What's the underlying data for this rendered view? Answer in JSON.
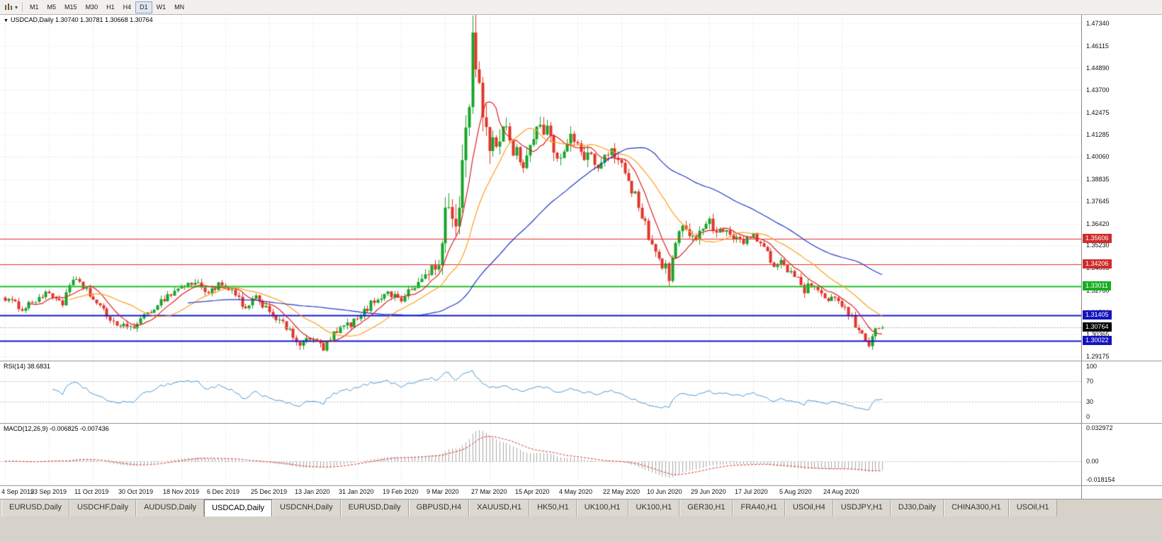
{
  "toolbar": {
    "icons": [
      {
        "name": "chart-type-icon"
      },
      {
        "name": "dropdown-caret-icon"
      }
    ],
    "timeframes": [
      {
        "label": "M1",
        "active": false
      },
      {
        "label": "M5",
        "active": false
      },
      {
        "label": "M15",
        "active": false
      },
      {
        "label": "M30",
        "active": false
      },
      {
        "label": "H1",
        "active": false
      },
      {
        "label": "H4",
        "active": false
      },
      {
        "label": "D1",
        "active": true
      },
      {
        "label": "W1",
        "active": false
      },
      {
        "label": "MN",
        "active": false
      }
    ]
  },
  "chart": {
    "title_arrow": "▼",
    "symbol": "USDCAD,Daily",
    "ohlc": "1.30740 1.30781 1.30668 1.30764"
  },
  "rsi_panel": {
    "title": "RSI(14) 38.6831",
    "line_color": "#4f9bd5",
    "ticks": [
      {
        "text": "100",
        "value": 100
      },
      {
        "text": "70",
        "value": 70
      },
      {
        "text": "30",
        "value": 30
      },
      {
        "text": "0",
        "value": 0
      }
    ],
    "dotted_levels": [
      70,
      30
    ]
  },
  "macd_panel": {
    "title": "MACD(12,26,9) -0.006825 -0.007436",
    "hist_color": "#a8a8a8",
    "signal_color": "#e03030",
    "range": [
      -0.018154,
      0.032972
    ],
    "ticks": [
      {
        "text": "0.032972",
        "value": 0.032972
      },
      {
        "text": "0.00",
        "value": 0
      },
      {
        "text": "-0.018154",
        "value": -0.018154
      }
    ]
  },
  "price_axis": {
    "top": 1.4734,
    "bottom": 1.29175,
    "labels": [
      "1.47340",
      "1.46115",
      "1.44890",
      "1.43700",
      "1.42475",
      "1.41285",
      "1.40060",
      "1.38835",
      "1.37645",
      "1.36420",
      "1.35230",
      "1.34005",
      "1.32780",
      "1.31590",
      "1.30365",
      "1.29175"
    ]
  },
  "levels": [
    {
      "text": "1.35606",
      "price": 1.35606,
      "line": "#e62e2e",
      "badge": "#cf2c2c",
      "width": 1
    },
    {
      "text": "1.34206",
      "price": 1.34206,
      "line": "#e62e2e",
      "badge": "#cf2c2c",
      "width": 1
    },
    {
      "text": "1.33011",
      "price": 1.33011,
      "line": "#1fbf2a",
      "badge": "#17ad21",
      "width": 2
    },
    {
      "text": "1.31405",
      "price": 1.31405,
      "line": "#1616cf",
      "badge": "#1414bd",
      "width": 2
    },
    {
      "text": "1.30022",
      "price": 1.30022,
      "line": "#1616cf",
      "badge": "#1414bd",
      "width": 2
    }
  ],
  "current_price": {
    "text": "1.30764",
    "value": 1.30764,
    "badge": "#000000"
  },
  "dates": [
    "4 Sep 2019",
    "23 Sep 2019",
    "11 Oct 2019",
    "30 Oct 2019",
    "18 Nov 2019",
    "6 Dec 2019",
    "25 Dec 2019",
    "13 Jan 2020",
    "31 Jan 2020",
    "19 Feb 2020",
    "9 Mar 2020",
    "27 Mar 2020",
    "15 Apr 2020",
    "4 May 2020",
    "22 May 2020",
    "10 Jun 2020",
    "29 Jun 2020",
    "17 Jul 2020",
    "5 Aug 2020",
    "24 Aug 2020"
  ],
  "tabs": {
    "active_index": 3,
    "items": [
      "EURUSD,Daily",
      "USDCHF,Daily",
      "AUDUSD,Daily",
      "USDCAD,Daily",
      "USDCNH,Daily",
      "EURUSD,Daily",
      "GBPUSD,H4",
      "XAUUSD,H1",
      "HK50,H1",
      "UK100,H1",
      "UK100,H1",
      "GER30,H1",
      "FRA40,H1",
      "USOil,H4",
      "USDJPY,H1",
      "DJ30,Daily",
      "CHINA300,H1",
      "USOil,H1"
    ],
    "note": "USDCAD,Daily is the selected chart tab"
  },
  "chart_data": {
    "type": "candlestick",
    "symbol": "USDCAD",
    "timeframe": "Daily",
    "count": 260,
    "bars_per_tick": 13,
    "seed": 1234,
    "up_color": "#18a428",
    "down_color": "#e03528",
    "last_close": 1.30764,
    "session_high": 1.4668,
    "price_anchors": [
      [
        0,
        1.3235
      ],
      [
        5,
        1.318
      ],
      [
        10,
        1.324
      ],
      [
        13,
        1.326
      ],
      [
        17,
        1.321
      ],
      [
        20,
        1.3335
      ],
      [
        24,
        1.3285
      ],
      [
        26,
        1.3225
      ],
      [
        30,
        1.314
      ],
      [
        34,
        1.3075
      ],
      [
        39,
        1.309
      ],
      [
        43,
        1.317
      ],
      [
        47,
        1.3235
      ],
      [
        52,
        1.33
      ],
      [
        56,
        1.332
      ],
      [
        60,
        1.327
      ],
      [
        63,
        1.3305
      ],
      [
        66,
        1.328
      ],
      [
        69,
        1.323
      ],
      [
        71,
        1.317
      ],
      [
        74,
        1.3235
      ],
      [
        78,
        1.317
      ],
      [
        81,
        1.311
      ],
      [
        84,
        1.305
      ],
      [
        87,
        1.2985
      ],
      [
        91,
        1.3015
      ],
      [
        94,
        1.296
      ],
      [
        97,
        1.3035
      ],
      [
        100,
        1.308
      ],
      [
        104,
        1.3115
      ],
      [
        108,
        1.3205
      ],
      [
        112,
        1.3265
      ],
      [
        117,
        1.3235
      ],
      [
        121,
        1.3295
      ],
      [
        125,
        1.3385
      ],
      [
        128,
        1.3405
      ],
      [
        130,
        1.366
      ],
      [
        131,
        1.3755
      ],
      [
        133,
        1.3625
      ],
      [
        135,
        1.395
      ],
      [
        137,
        1.435
      ],
      [
        138,
        1.462
      ],
      [
        140,
        1.4455
      ],
      [
        141,
        1.4255
      ],
      [
        143,
        1.3995
      ],
      [
        145,
        1.409
      ],
      [
        147,
        1.4195
      ],
      [
        149,
        1.4105
      ],
      [
        151,
        1.4035
      ],
      [
        153,
        1.3975
      ],
      [
        156,
        1.409
      ],
      [
        158,
        1.42
      ],
      [
        160,
        1.413
      ],
      [
        162,
        1.406
      ],
      [
        164,
        1.401
      ],
      [
        166,
        1.412
      ],
      [
        169,
        1.407
      ],
      [
        171,
        1.398
      ],
      [
        173,
        1.404
      ],
      [
        175,
        1.393
      ],
      [
        177,
        1.399
      ],
      [
        179,
        1.403
      ],
      [
        182,
        1.399
      ],
      [
        184,
        1.388
      ],
      [
        186,
        1.379
      ],
      [
        188,
        1.368
      ],
      [
        190,
        1.358
      ],
      [
        192,
        1.348
      ],
      [
        194,
        1.339
      ],
      [
        195,
        1.342
      ],
      [
        196,
        1.334
      ],
      [
        198,
        1.356
      ],
      [
        200,
        1.362
      ],
      [
        202,
        1.355
      ],
      [
        204,
        1.358
      ],
      [
        206,
        1.364
      ],
      [
        208,
        1.365
      ],
      [
        210,
        1.36
      ],
      [
        212,
        1.362
      ],
      [
        214,
        1.356
      ],
      [
        216,
        1.359
      ],
      [
        218,
        1.354
      ],
      [
        221,
        1.358
      ],
      [
        223,
        1.353
      ],
      [
        225,
        1.347
      ],
      [
        227,
        1.341
      ],
      [
        229,
        1.344
      ],
      [
        231,
        1.339
      ],
      [
        234,
        1.333
      ],
      [
        236,
        1.328
      ],
      [
        238,
        1.331
      ],
      [
        240,
        1.326
      ],
      [
        242,
        1.322
      ],
      [
        244,
        1.325
      ],
      [
        247,
        1.319
      ],
      [
        249,
        1.315
      ],
      [
        251,
        1.309
      ],
      [
        253,
        1.303
      ],
      [
        255,
        1.299
      ],
      [
        256,
        1.304
      ],
      [
        258,
        1.3076
      ],
      [
        259,
        1.30764
      ]
    ],
    "volatility_anchors": [
      [
        0,
        0.0028
      ],
      [
        80,
        0.0032
      ],
      [
        120,
        0.0035
      ],
      [
        128,
        0.006
      ],
      [
        130,
        0.012
      ],
      [
        140,
        0.015
      ],
      [
        148,
        0.01
      ],
      [
        160,
        0.008
      ],
      [
        172,
        0.006
      ],
      [
        186,
        0.0055
      ],
      [
        200,
        0.005
      ],
      [
        214,
        0.004
      ],
      [
        232,
        0.0035
      ],
      [
        252,
        0.0035
      ],
      [
        259,
        0.003
      ]
    ],
    "pins": {
      "high": [
        [
          138,
          1.4668
        ]
      ],
      "low": [
        [
          87,
          1.2952
        ],
        [
          94,
          1.2951
        ],
        [
          255,
          1.2989
        ]
      ],
      "close": [
        [
          259,
          1.30764
        ]
      ]
    },
    "indicators": {
      "ma": [
        {
          "period": 8,
          "color": "#e02020"
        },
        {
          "period": 20,
          "color": "#ff9f1a"
        },
        {
          "period": 55,
          "color": "#2038c8"
        }
      ],
      "rsi": {
        "period": 14,
        "value_shown": 38.6831
      },
      "macd": {
        "fast": 12,
        "slow": 26,
        "signal": 9,
        "values_shown": [
          -0.006825,
          -0.007436
        ]
      }
    }
  }
}
